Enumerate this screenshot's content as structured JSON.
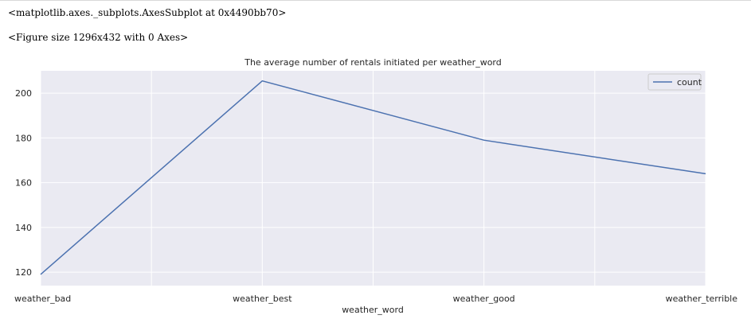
{
  "notebook": {
    "output_repr": "<matplotlib.axes._subplots.AxesSubplot at 0x4490bb70>",
    "figure_repr": "<Figure size 1296x432 with 0 Axes>"
  },
  "colors": {
    "plot_background": "#eaeaf2",
    "grid": "#ffffff",
    "line": "#4c72b0",
    "text": "#262626"
  },
  "chart_data": {
    "type": "line",
    "title": "The average number of rentals initiated per weather_word",
    "xlabel": "weather_word",
    "ylabel": "",
    "categories": [
      "weather_bad",
      "weather_best",
      "weather_good",
      "weather_terrible"
    ],
    "series": [
      {
        "name": "count",
        "values": [
          119,
          205.5,
          179,
          164
        ]
      }
    ],
    "ylim": [
      114,
      210
    ],
    "yticks": [
      120,
      140,
      160,
      180,
      200
    ],
    "grid": true,
    "legend_position": "top-right"
  }
}
